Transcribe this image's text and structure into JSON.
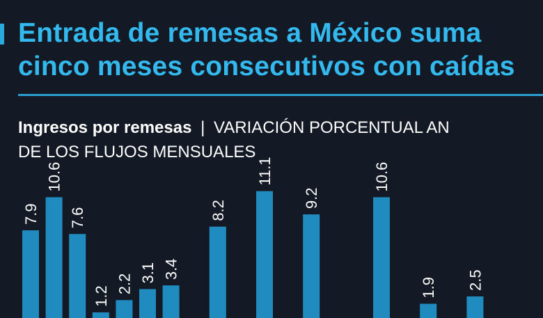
{
  "header": {
    "title_line1": "Entrada de remesas a México suma",
    "title_line2": "cinco meses consecutivos con caídas",
    "subtitle_bold": "Ingresos por remesas",
    "subtitle_separator": "|",
    "subtitle_rest": "VARIACIÓN PORCENTUAL AN",
    "subtitle_line2": "DE LOS FLUJOS MENSUALES"
  },
  "colors": {
    "background": "#141a25",
    "accent": "#33b9ee",
    "bar": "#1f8bbf"
  },
  "chart_data": {
    "type": "bar",
    "title": "Ingresos por remesas",
    "subtitle": "VARIACIÓN PORCENTUAL AN DE LOS FLUJOS MENSUALES",
    "xlabel": "",
    "ylabel": "",
    "grid": false,
    "values": [
      7.9,
      10.6,
      7.6,
      1.2,
      2.2,
      3.1,
      3.4,
      null,
      8.2,
      null,
      11.1,
      null,
      9.2,
      null,
      null,
      10.6,
      null,
      1.9,
      null,
      2.5
    ],
    "labels": [
      "7.9",
      "10.6",
      "7.6",
      "1.2",
      "2.2",
      "3.1",
      "3.4",
      "",
      "8.2",
      "",
      "11.1",
      "",
      "9.2",
      "",
      "",
      "10.6",
      "",
      "1.9",
      "",
      "2.5"
    ]
  }
}
